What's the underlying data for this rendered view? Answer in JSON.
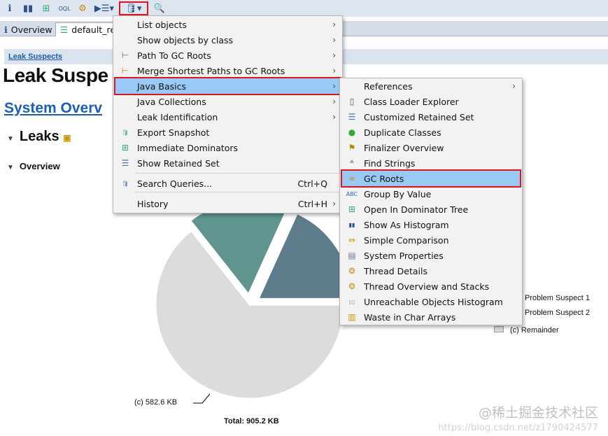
{
  "toolbar": {
    "icons": [
      "info-icon",
      "histogram-icon",
      "dominator-tree-icon",
      "oql-icon",
      "thread-gear-icon",
      "report-icon",
      "query-browser-icon",
      "search-icon"
    ]
  },
  "tabs": [
    {
      "label": "Overview",
      "icon": "info-icon"
    },
    {
      "label": "default_re",
      "icon": "report-icon"
    }
  ],
  "breadcrumb": "Leak Suspects",
  "page_title": "Leak Suspe",
  "system_overview": "System Overv",
  "leaks_heading": "Leaks",
  "overview_heading": "Overview",
  "menu": {
    "items": [
      {
        "label": "List objects",
        "submenu": true
      },
      {
        "label": "Show objects by class",
        "submenu": true
      },
      {
        "label": "Path To GC Roots",
        "submenu": true,
        "icon": "path-icon"
      },
      {
        "label": "Merge Shortest Paths to GC Roots",
        "submenu": true,
        "icon": "merge-path-icon"
      },
      {
        "label": "Java Basics",
        "submenu": true,
        "highlighted": true
      },
      {
        "label": "Java Collections",
        "submenu": true
      },
      {
        "label": "Leak Identification",
        "submenu": true
      },
      {
        "label": "Export Snapshot",
        "icon": "export-icon"
      },
      {
        "label": "Immediate Dominators",
        "icon": "dominator-icon"
      },
      {
        "label": "Show Retained Set",
        "icon": "retained-set-icon"
      },
      {
        "label": "Search Queries...",
        "shortcut": "Ctrl+Q",
        "icon": "query-icon"
      },
      {
        "label": "History",
        "shortcut": "Ctrl+H",
        "submenu": true
      }
    ]
  },
  "submenu": {
    "items": [
      {
        "label": "References",
        "submenu": true
      },
      {
        "label": "Class Loader Explorer",
        "icon": "class-loader-icon"
      },
      {
        "label": "Customized Retained Set",
        "icon": "retained-set-icon"
      },
      {
        "label": "Duplicate Classes",
        "icon": "class-icon"
      },
      {
        "label": "Finalizer Overview",
        "icon": "finalizer-icon"
      },
      {
        "label": "Find Strings",
        "icon": "find-strings-icon"
      },
      {
        "label": "GC Roots",
        "icon": "gc-roots-icon",
        "highlighted": true
      },
      {
        "label": "Group By Value",
        "icon": "group-value-icon"
      },
      {
        "label": "Open In Dominator Tree",
        "icon": "dominator-tree-icon"
      },
      {
        "label": "Show As Histogram",
        "icon": "histogram-icon"
      },
      {
        "label": "Simple Comparison",
        "icon": "compare-icon"
      },
      {
        "label": "System Properties",
        "icon": "properties-icon"
      },
      {
        "label": "Thread Details",
        "icon": "thread-gear-icon"
      },
      {
        "label": "Thread Overview and Stacks",
        "icon": "thread-gear-icon"
      },
      {
        "label": "Unreachable Objects Histogram",
        "icon": "unreachable-histogram-icon"
      },
      {
        "label": "Waste in Char Arrays",
        "icon": "char-array-icon"
      }
    ]
  },
  "chart_data": {
    "type": "pie",
    "total_label": "Total: 905.2 KB",
    "slices": [
      {
        "name": "Problem Suspect 1",
        "value": 165,
        "color": "#5e7c8c"
      },
      {
        "name": "Problem Suspect 2",
        "value": 157.6,
        "color": "#5f948f"
      },
      {
        "name": "Remainder",
        "value": 582.6,
        "label": "(c)  582.6 KB",
        "color": "#dcdcdc"
      }
    ],
    "legend": [
      "Problem Suspect 1",
      "Problem Suspect 2",
      "(c)  Remainder"
    ]
  },
  "watermark": {
    "line1": "@稀土掘金技术社区",
    "line2": "https://blog.csdn.net/z1790424577"
  }
}
